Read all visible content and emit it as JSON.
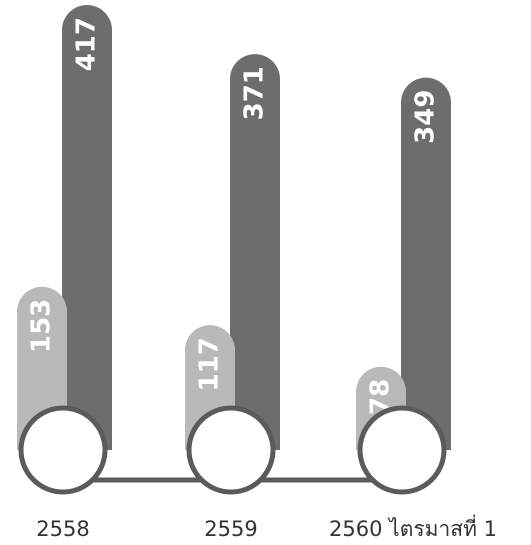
{
  "chart_data": {
    "type": "bar",
    "categories": [
      "2558",
      "2559",
      "2560 ไตรมาสที่ 1"
    ],
    "series": [
      {
        "color": "#b9b9b9",
        "values": [
          153,
          117,
          78
        ]
      },
      {
        "color": "#6d6d6d",
        "values": [
          417,
          371,
          349
        ]
      }
    ]
  }
}
